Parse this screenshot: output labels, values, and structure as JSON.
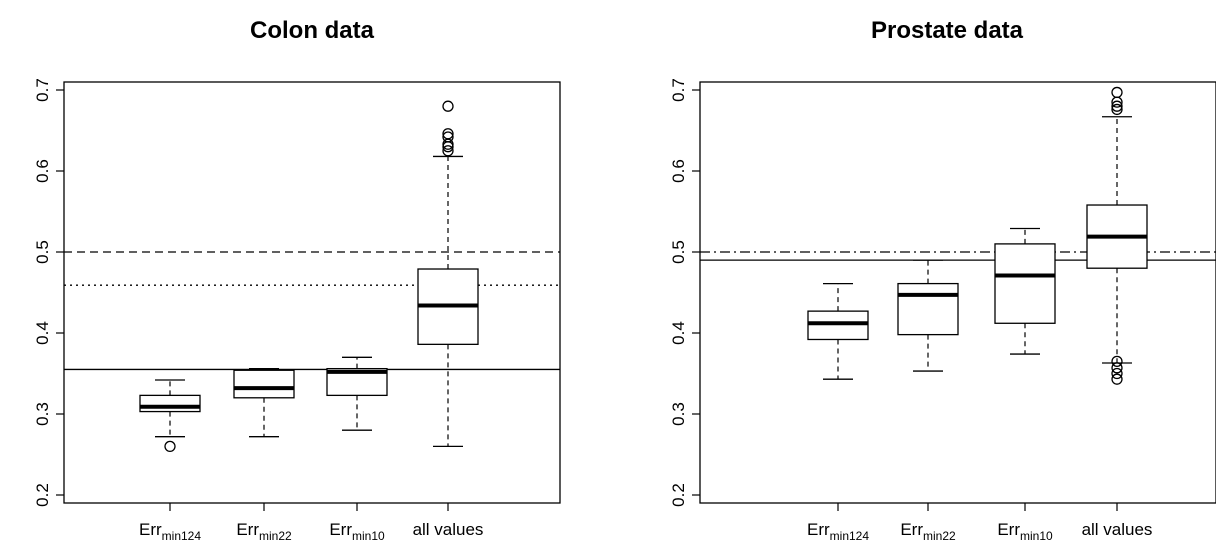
{
  "chart_data": [
    {
      "type": "box",
      "title": "Colon data",
      "ylim": [
        0.2,
        0.7
      ],
      "yticks": [
        "0.2",
        "0.3",
        "0.4",
        "0.5",
        "0.6",
        "0.7"
      ],
      "categories": [
        {
          "base": "Err",
          "sub": "min124"
        },
        {
          "base": "Err",
          "sub": "min22"
        },
        {
          "base": "Err",
          "sub": "min10"
        },
        {
          "base": "all values",
          "sub": ""
        }
      ],
      "boxes": [
        {
          "whisker_low": 0.272,
          "q1": 0.303,
          "median": 0.309,
          "q3": 0.323,
          "whisker_high": 0.342,
          "outliers": [
            0.26
          ]
        },
        {
          "whisker_low": 0.272,
          "q1": 0.32,
          "median": 0.332,
          "q3": 0.354,
          "whisker_high": 0.356,
          "outliers": []
        },
        {
          "whisker_low": 0.28,
          "q1": 0.323,
          "median": 0.352,
          "q3": 0.356,
          "whisker_high": 0.37,
          "outliers": []
        },
        {
          "whisker_low": 0.26,
          "q1": 0.386,
          "median": 0.434,
          "q3": 0.479,
          "whisker_high": 0.618,
          "outliers": [
            0.625,
            0.63,
            0.633,
            0.642,
            0.646,
            0.68
          ]
        }
      ],
      "reference_lines": [
        {
          "value": 0.5,
          "style": "dashed"
        },
        {
          "value": 0.459,
          "style": "dotted"
        },
        {
          "value": 0.355,
          "style": "solid"
        }
      ],
      "grid": false
    },
    {
      "type": "box",
      "title": "Prostate data",
      "ylim": [
        0.2,
        0.7
      ],
      "yticks": [
        "0.2",
        "0.3",
        "0.4",
        "0.5",
        "0.6",
        "0.7"
      ],
      "categories": [
        {
          "base": "Err",
          "sub": "min124"
        },
        {
          "base": "Err",
          "sub": "min22"
        },
        {
          "base": "Err",
          "sub": "min10"
        },
        {
          "base": "all values",
          "sub": ""
        }
      ],
      "boxes": [
        {
          "whisker_low": 0.343,
          "q1": 0.392,
          "median": 0.412,
          "q3": 0.427,
          "whisker_high": 0.461,
          "outliers": []
        },
        {
          "whisker_low": 0.353,
          "q1": 0.398,
          "median": 0.447,
          "q3": 0.461,
          "whisker_high": 0.49,
          "outliers": []
        },
        {
          "whisker_low": 0.374,
          "q1": 0.412,
          "median": 0.471,
          "q3": 0.51,
          "whisker_high": 0.529,
          "outliers": []
        },
        {
          "whisker_low": 0.363,
          "q1": 0.48,
          "median": 0.519,
          "q3": 0.558,
          "whisker_high": 0.667,
          "outliers": [
            0.343,
            0.35,
            0.357,
            0.365,
            0.676,
            0.68,
            0.685,
            0.697
          ]
        }
      ],
      "reference_lines": [
        {
          "value": 0.5,
          "style": "dashdot"
        },
        {
          "value": 0.49,
          "style": "solid"
        }
      ],
      "grid": false
    }
  ]
}
